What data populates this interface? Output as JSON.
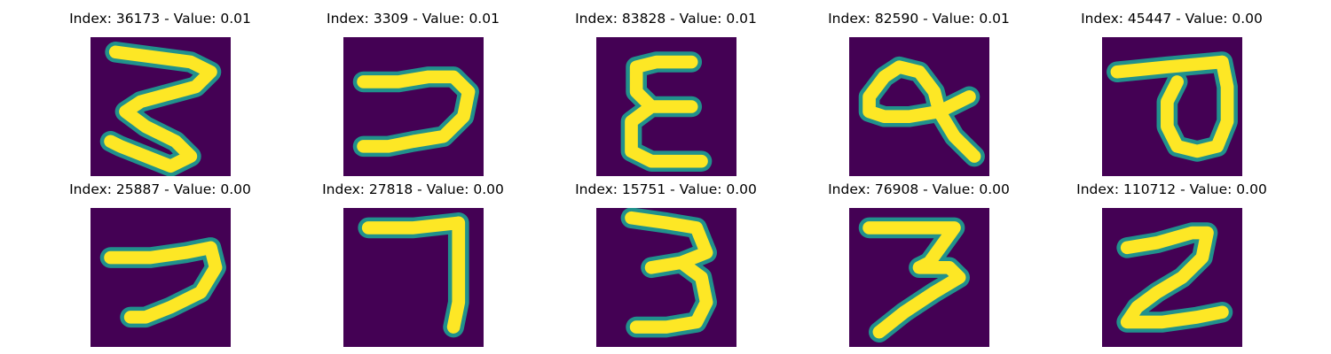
{
  "colors": {
    "background": "#440154",
    "mid": "#21918c",
    "stroke": "#fde725"
  },
  "images": [
    {
      "title": "Index: 36173 - Value: 0.01"
    },
    {
      "title": "Index: 3309 - Value: 0.01"
    },
    {
      "title": "Index: 83828 - Value: 0.01"
    },
    {
      "title": "Index: 82590 - Value: 0.01"
    },
    {
      "title": "Index: 45447 - Value: 0.00"
    },
    {
      "title": "Index: 25887 - Value: 0.00"
    },
    {
      "title": "Index: 27818 - Value: 0.00"
    },
    {
      "title": "Index: 15751 - Value: 0.00"
    },
    {
      "title": "Index: 76908 - Value: 0.00"
    },
    {
      "title": "Index: 110712 - Value: 0.00"
    }
  ]
}
